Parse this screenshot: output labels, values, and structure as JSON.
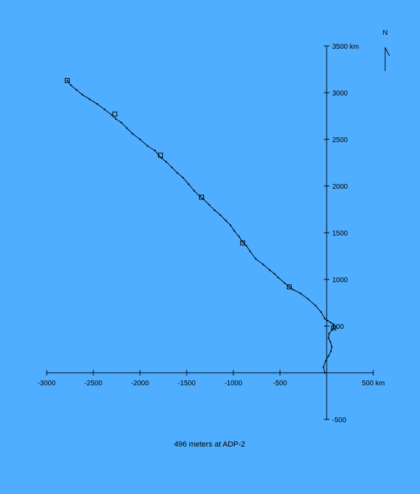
{
  "chart_data": {
    "type": "line",
    "title": "",
    "caption": "496 meters at ADP-2",
    "x_unit_label": "500 km",
    "y_unit_label": "3500 km",
    "north_label": "N",
    "xlim": [
      -3000,
      500
    ],
    "ylim": [
      -500,
      3500
    ],
    "x_ticks": [
      {
        "value": -3000,
        "label": "-3000"
      },
      {
        "value": -2500,
        "label": "-2500"
      },
      {
        "value": -2000,
        "label": "-2000"
      },
      {
        "value": -1500,
        "label": "-1500"
      },
      {
        "value": -1000,
        "label": "-1000"
      },
      {
        "value": -500,
        "label": "-500"
      },
      {
        "value": 0,
        "label": ""
      },
      {
        "value": 500,
        "label": "500 km"
      }
    ],
    "y_ticks": [
      {
        "value": -500,
        "label": "-500"
      },
      {
        "value": 0,
        "label": ""
      },
      {
        "value": 500,
        "label": "500"
      },
      {
        "value": 1000,
        "label": "1000"
      },
      {
        "value": 1500,
        "label": "1500"
      },
      {
        "value": 2000,
        "label": "2000"
      },
      {
        "value": 2500,
        "label": "2500"
      },
      {
        "value": 3000,
        "label": "3000"
      },
      {
        "value": 3500,
        "label": "3500 km"
      }
    ],
    "grid": false,
    "legend": "none",
    "series": [
      {
        "x": [
          -20,
          -35,
          -10,
          20,
          45,
          55,
          40,
          20,
          25,
          55,
          75,
          70,
          40,
          10,
          -20,
          -60,
          -120,
          -200,
          -280,
          -360,
          -400,
          -450,
          -520,
          -560,
          -610,
          -680,
          -760,
          -820,
          -860,
          -900,
          -940,
          -990,
          -1030,
          -1080,
          -1140,
          -1200,
          -1260,
          -1320,
          -1360,
          -1420,
          -1480,
          -1540,
          -1600,
          -1660,
          -1720,
          -1770,
          -1800,
          -1840,
          -1920,
          -2000,
          -2080,
          -2140,
          -2200,
          -2260,
          -2300,
          -2380,
          -2460,
          -2540,
          -2620,
          -2680,
          -2740,
          -2780
        ],
        "y": [
          0,
          60,
          130,
          180,
          230,
          280,
          330,
          370,
          420,
          460,
          480,
          520,
          540,
          560,
          580,
          650,
          720,
          790,
          850,
          890,
          920,
          960,
          1020,
          1060,
          1100,
          1160,
          1220,
          1300,
          1360,
          1400,
          1460,
          1520,
          1580,
          1630,
          1690,
          1740,
          1800,
          1860,
          1890,
          1950,
          2020,
          2090,
          2140,
          2200,
          2260,
          2300,
          2330,
          2380,
          2430,
          2500,
          2560,
          2620,
          2680,
          2720,
          2760,
          2820,
          2880,
          2930,
          2980,
          3030,
          3080,
          3130
        ]
      }
    ],
    "markers": [
      {
        "x": 75,
        "y": 480
      },
      {
        "x": -400,
        "y": 920
      },
      {
        "x": -900,
        "y": 1390
      },
      {
        "x": -1340,
        "y": 1880
      },
      {
        "x": -1780,
        "y": 2330
      },
      {
        "x": -2270,
        "y": 2770
      },
      {
        "x": -2780,
        "y": 3130
      }
    ]
  },
  "colors": {
    "background": "#4FAEFF",
    "ink": "#000000"
  }
}
